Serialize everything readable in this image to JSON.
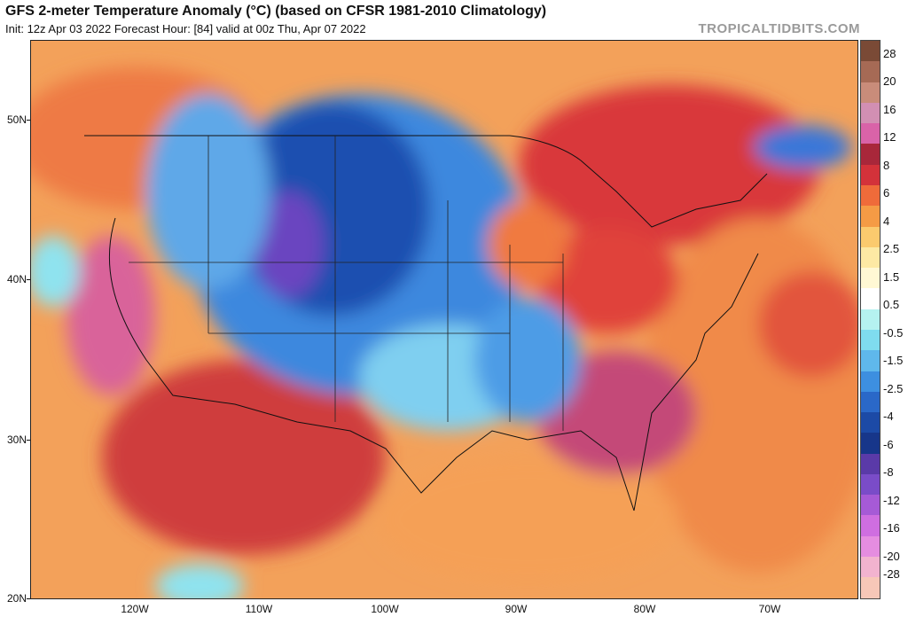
{
  "header": {
    "title": "GFS 2-meter Temperature Anomaly (°C) (based on CFSR 1981-2010 Climatology)",
    "subtitle": "Init: 12z Apr 03 2022   Forecast Hour: [84]   valid at 00z Thu, Apr 07 2022",
    "brand": "TROPICALTIDBITS.COM"
  },
  "axes": {
    "lat_labels": [
      "50N",
      "40N",
      "30N",
      "20N"
    ],
    "lon_labels": [
      "120W",
      "110W",
      "100W",
      "90W",
      "80W",
      "70W"
    ]
  },
  "colorbar": {
    "labels": [
      "28",
      "20",
      "16",
      "12",
      "8",
      "6",
      "4",
      "2.5",
      "1.5",
      "0.5",
      "-0.5",
      "-1.5",
      "-2.5",
      "-4",
      "-6",
      "-8",
      "-12",
      "-16",
      "-20",
      "-28"
    ],
    "colors": [
      "#7a4a36",
      "#a66a55",
      "#c98c7a",
      "#d28fb3",
      "#d963a8",
      "#a8273a",
      "#d3323a",
      "#ef6b3a",
      "#f59b45",
      "#fbca6e",
      "#fde9a4",
      "#fff8d4",
      "#ffffff",
      "#b5f2f0",
      "#7fdcef",
      "#5fb8ec",
      "#3d8fe0",
      "#2a68c8",
      "#1c4aa6",
      "#17368a",
      "#5a3aa8",
      "#7a4cc8",
      "#a65ad6",
      "#cf6ee0",
      "#e58de0",
      "#f2b3cf",
      "#f7c7b8"
    ]
  }
}
